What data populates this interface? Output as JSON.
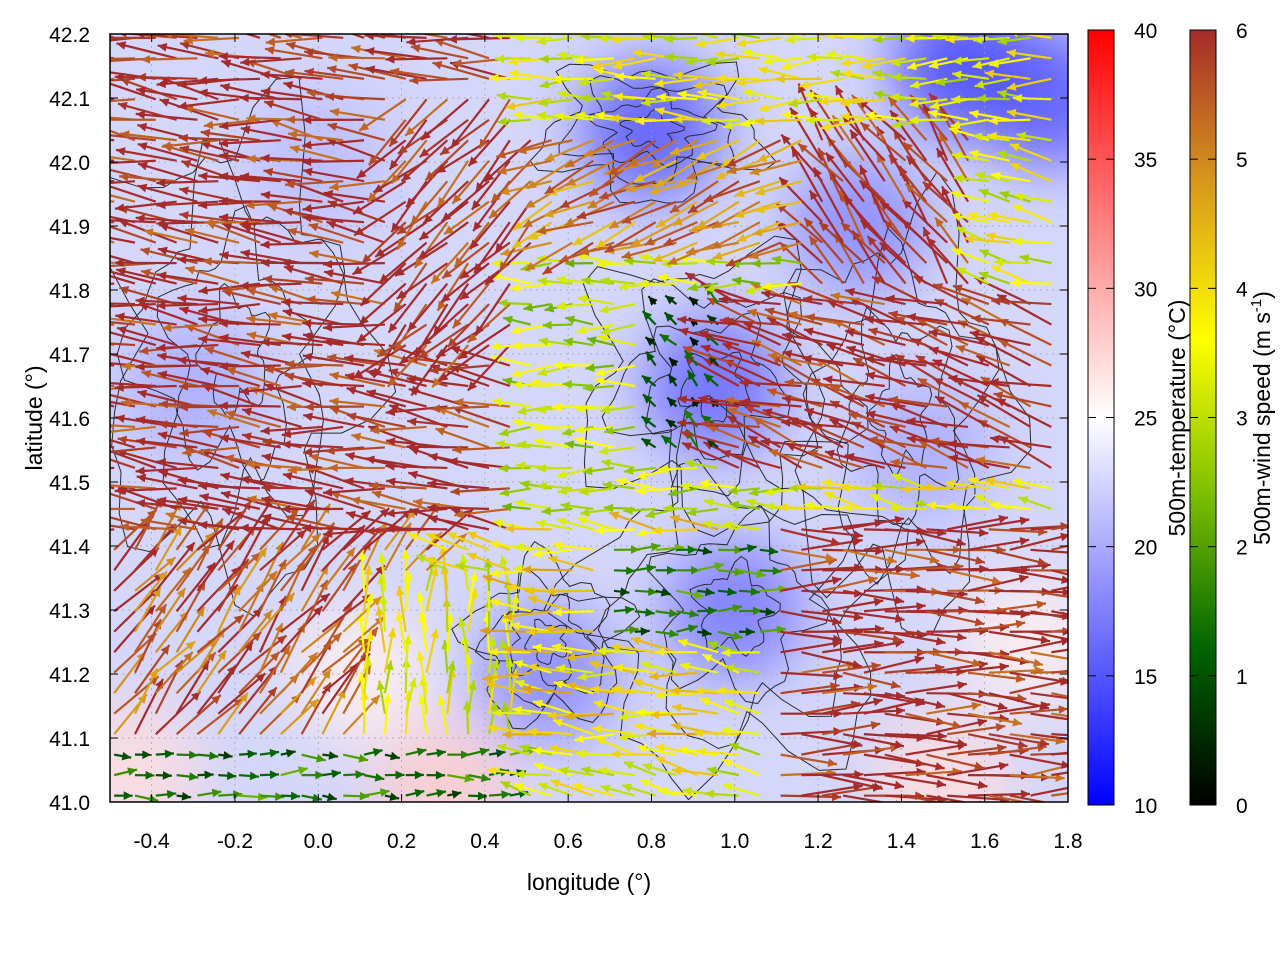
{
  "chart_data": {
    "type": "vector-field",
    "xlabel": "longitude (°)",
    "ylabel": "latitude (°)",
    "xlim": [
      -0.5,
      1.8
    ],
    "ylim": [
      41.0,
      42.2
    ],
    "xticks": [
      "-0.4",
      "-0.2",
      "0.0",
      "0.2",
      "0.4",
      "0.6",
      "0.8",
      "1.0",
      "1.2",
      "1.4",
      "1.6",
      "1.8"
    ],
    "xtick_values": [
      -0.4,
      -0.2,
      0.0,
      0.2,
      0.4,
      0.6,
      0.8,
      1.0,
      1.2,
      1.4,
      1.6,
      1.8
    ],
    "yticks": [
      "41.0",
      "41.1",
      "41.2",
      "41.3",
      "41.4",
      "41.5",
      "41.6",
      "41.7",
      "41.8",
      "41.9",
      "42.0",
      "42.1",
      "42.2"
    ],
    "ytick_values": [
      41.0,
      41.1,
      41.2,
      41.3,
      41.4,
      41.5,
      41.6,
      41.7,
      41.8,
      41.9,
      42.0,
      42.1,
      42.2
    ],
    "grid": true,
    "temperature_colorbar": {
      "label": "500m-temperature (°C)",
      "range": [
        10,
        40
      ],
      "ticks": [
        "10",
        "15",
        "20",
        "25",
        "30",
        "35",
        "40"
      ],
      "tick_values": [
        10,
        15,
        20,
        25,
        30,
        35,
        40
      ],
      "colors": [
        "#0000ff",
        "#ffffff",
        "#ff0000"
      ]
    },
    "windspeed_colorbar": {
      "label_main": "500m-wind speed (m s",
      "label_sup": "-1",
      "label_end": ")",
      "range": [
        0,
        6
      ],
      "ticks": [
        "0",
        "1",
        "2",
        "3",
        "4",
        "5",
        "6"
      ],
      "tick_values": [
        0,
        1,
        2,
        3,
        4,
        5,
        6
      ],
      "colors": [
        "#000000",
        "#006400",
        "#7cbf00",
        "#ffff00",
        "#d99a1c",
        "#a52a2a"
      ]
    },
    "temperature_patches": [
      {
        "lon": 0.95,
        "lat": 41.65,
        "temp": 16
      },
      {
        "lon": 1.55,
        "lat": 42.15,
        "temp": 14
      },
      {
        "lon": 1.75,
        "lat": 42.1,
        "temp": 15
      },
      {
        "lon": 0.8,
        "lat": 42.05,
        "temp": 15
      },
      {
        "lon": 1.0,
        "lat": 41.3,
        "temp": 17
      },
      {
        "lon": 1.3,
        "lat": 41.9,
        "temp": 18
      },
      {
        "lon": 0.55,
        "lat": 41.2,
        "temp": 18
      },
      {
        "lon": 0.1,
        "lat": 41.2,
        "temp": 26
      },
      {
        "lon": -0.45,
        "lat": 41.05,
        "temp": 27
      },
      {
        "lon": 0.3,
        "lat": 41.02,
        "temp": 28
      },
      {
        "lon": 1.5,
        "lat": 41.03,
        "temp": 27
      },
      {
        "lon": 1.7,
        "lat": 41.25,
        "temp": 26
      },
      {
        "lon": -0.3,
        "lat": 41.65,
        "temp": 20
      },
      {
        "lon": 0.0,
        "lat": 42.0,
        "temp": 21
      },
      {
        "lon": 1.45,
        "lat": 41.55,
        "temp": 20
      }
    ],
    "wind_regions": [
      {
        "lon_range": [
          -0.5,
          0.5
        ],
        "lat_range": [
          41.4,
          42.2
        ],
        "u": -1,
        "v": 0.12,
        "speed": 6
      },
      {
        "lon_range": [
          0.2,
          0.55
        ],
        "lat_range": [
          41.7,
          42.1
        ],
        "u": -0.7,
        "v": -0.7,
        "speed": 6
      },
      {
        "lon_range": [
          -0.5,
          0.3
        ],
        "lat_range": [
          41.1,
          41.4
        ],
        "u": 0.6,
        "v": 0.75,
        "speed": 5.5
      },
      {
        "lon_range": [
          -0.5,
          0.5
        ],
        "lat_range": [
          41.0,
          41.1
        ],
        "u": 1,
        "v": 0,
        "speed": 1.5
      },
      {
        "lon_range": [
          0.1,
          0.5
        ],
        "lat_range": [
          41.1,
          41.35
        ],
        "u": 0,
        "v": 1,
        "speed": 3.5
      },
      {
        "lon_range": [
          0.5,
          1.2
        ],
        "lat_range": [
          41.45,
          41.85
        ],
        "u": -1,
        "v": 0,
        "speed": 3
      },
      {
        "lon_range": [
          0.8,
          1.1
        ],
        "lat_range": [
          41.55,
          41.8
        ],
        "u": -0.5,
        "v": 0.5,
        "speed": 0.8
      },
      {
        "lon_range": [
          0.5,
          1.0
        ],
        "lat_range": [
          41.1,
          41.45
        ],
        "u": -1,
        "v": 0.1,
        "speed": 4
      },
      {
        "lon_range": [
          0.7,
          1.1
        ],
        "lat_range": [
          41.25,
          41.4
        ],
        "u": 1,
        "v": 0,
        "speed": 1.5
      },
      {
        "lon_range": [
          1.0,
          1.8
        ],
        "lat_range": [
          41.5,
          41.8
        ],
        "u": -0.95,
        "v": 0.3,
        "speed": 6
      },
      {
        "lon_range": [
          1.1,
          1.8
        ],
        "lat_range": [
          41.0,
          41.45
        ],
        "u": 1,
        "v": 0,
        "speed": 6
      },
      {
        "lon_range": [
          1.2,
          1.6
        ],
        "lat_range": [
          41.8,
          42.05
        ],
        "u": -0.6,
        "v": 0.8,
        "speed": 6
      },
      {
        "lon_range": [
          0.5,
          1.8
        ],
        "lat_range": [
          42.05,
          42.2
        ],
        "u": -1,
        "v": 0,
        "speed": 3.5
      },
      {
        "lon_range": [
          0.55,
          1.2
        ],
        "lat_range": [
          41.85,
          42.05
        ],
        "u": -0.9,
        "v": -0.4,
        "speed": 5
      }
    ],
    "contour_centers": [
      {
        "lon": 0.95,
        "lat": 41.65,
        "rx": 0.3,
        "ry": 0.2
      },
      {
        "lon": 0.55,
        "lat": 41.25,
        "rx": 0.18,
        "ry": 0.12
      },
      {
        "lon": 0.8,
        "lat": 42.05,
        "rx": 0.25,
        "ry": 0.1
      },
      {
        "lon": -0.2,
        "lat": 41.7,
        "rx": 0.3,
        "ry": 0.35
      },
      {
        "lon": 1.4,
        "lat": 41.6,
        "rx": 0.25,
        "ry": 0.3
      },
      {
        "lon": 1.0,
        "lat": 41.3,
        "rx": 0.35,
        "ry": 0.25
      }
    ]
  }
}
